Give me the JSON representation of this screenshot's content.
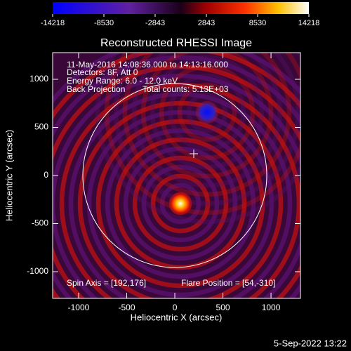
{
  "chart_data": {
    "type": "image",
    "title": "Reconstructed RHESSI Image",
    "x_label": "Heliocentric X (arcsec)",
    "y_label": "Heliocentric Y (arcsec)",
    "xlim": [
      -1270,
      1306
    ],
    "ylim": [
      -1277,
      1277
    ],
    "xticks": [
      -1000,
      -500,
      0,
      500,
      1000
    ],
    "yticks": [
      -1000,
      -500,
      0,
      500,
      1000
    ],
    "colorbar": {
      "lim": [
        -14218,
        14218
      ],
      "ticks": [
        -14218,
        -8530,
        -2843,
        2843,
        8530,
        14218
      ]
    },
    "annotations": [
      "11-May-2016 14:08:36.000 to 14:13:16.000",
      "Detectors: 8F, Att 0",
      "Energy Range: 6.0 - 12.0 keV",
      "Back Projection",
      "Total counts: 5.13E+03",
      "Spin Axis = [192,176]",
      "Flare Position = [54,-310]"
    ],
    "footer": "5-Sep-2022 13:22"
  }
}
